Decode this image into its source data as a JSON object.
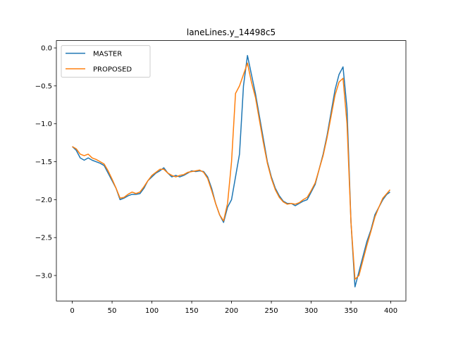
{
  "chart_data": {
    "type": "line",
    "title": "laneLines.y_14498c5",
    "x": [
      0,
      5,
      10,
      15,
      20,
      25,
      30,
      35,
      40,
      45,
      50,
      55,
      60,
      65,
      70,
      75,
      80,
      85,
      90,
      95,
      100,
      105,
      110,
      115,
      120,
      125,
      130,
      135,
      140,
      145,
      150,
      155,
      160,
      165,
      170,
      175,
      180,
      185,
      190,
      195,
      200,
      205,
      210,
      215,
      220,
      225,
      230,
      235,
      240,
      245,
      250,
      255,
      260,
      265,
      270,
      275,
      280,
      285,
      290,
      295,
      300,
      305,
      310,
      315,
      320,
      325,
      330,
      335,
      340,
      345,
      350,
      355,
      360,
      365,
      370,
      375,
      380,
      385,
      390,
      395,
      399
    ],
    "series": [
      {
        "name": "MASTER",
        "color": "#1f77b4",
        "values": [
          -1.3,
          -1.35,
          -1.45,
          -1.48,
          -1.45,
          -1.48,
          -1.5,
          -1.52,
          -1.55,
          -1.65,
          -1.75,
          -1.85,
          -2.0,
          -1.98,
          -1.95,
          -1.93,
          -1.93,
          -1.92,
          -1.85,
          -1.75,
          -1.7,
          -1.65,
          -1.62,
          -1.58,
          -1.65,
          -1.7,
          -1.68,
          -1.7,
          -1.68,
          -1.65,
          -1.62,
          -1.63,
          -1.62,
          -1.63,
          -1.7,
          -1.85,
          -2.05,
          -2.2,
          -2.3,
          -2.1,
          -2.0,
          -1.7,
          -1.4,
          -0.5,
          -0.1,
          -0.35,
          -0.6,
          -0.9,
          -1.2,
          -1.5,
          -1.7,
          -1.85,
          -1.95,
          -2.02,
          -2.05,
          -2.05,
          -2.08,
          -2.05,
          -2.02,
          -2.0,
          -1.9,
          -1.8,
          -1.6,
          -1.4,
          -1.15,
          -0.85,
          -0.55,
          -0.35,
          -0.25,
          -0.8,
          -2.3,
          -3.15,
          -2.95,
          -2.75,
          -2.55,
          -2.4,
          -2.2,
          -2.1,
          -2.0,
          -1.93,
          -1.9
        ]
      },
      {
        "name": "PROPOSED",
        "color": "#ff7f0e",
        "values": [
          -1.3,
          -1.33,
          -1.4,
          -1.42,
          -1.4,
          -1.45,
          -1.47,
          -1.5,
          -1.53,
          -1.62,
          -1.73,
          -1.85,
          -1.98,
          -1.97,
          -1.93,
          -1.9,
          -1.92,
          -1.9,
          -1.83,
          -1.75,
          -1.68,
          -1.64,
          -1.6,
          -1.6,
          -1.65,
          -1.68,
          -1.7,
          -1.68,
          -1.67,
          -1.64,
          -1.63,
          -1.62,
          -1.61,
          -1.64,
          -1.72,
          -1.88,
          -2.05,
          -2.2,
          -2.28,
          -2.05,
          -1.5,
          -0.6,
          -0.5,
          -0.35,
          -0.2,
          -0.45,
          -0.65,
          -0.95,
          -1.25,
          -1.52,
          -1.72,
          -1.87,
          -1.97,
          -2.03,
          -2.06,
          -2.05,
          -2.06,
          -2.04,
          -2.0,
          -1.97,
          -1.88,
          -1.78,
          -1.6,
          -1.42,
          -1.18,
          -0.9,
          -0.62,
          -0.45,
          -0.4,
          -1.0,
          -2.3,
          -3.05,
          -3.0,
          -2.8,
          -2.6,
          -2.42,
          -2.23,
          -2.1,
          -1.98,
          -1.92,
          -1.87
        ]
      }
    ],
    "xlim": [
      -19.95,
      418.95
    ],
    "ylim": [
      -3.336,
      0.097
    ],
    "xticks": [
      0,
      50,
      100,
      150,
      200,
      250,
      300,
      350,
      400
    ],
    "yticks": [
      {
        "value": 0,
        "label": "0.0"
      },
      {
        "value": -0.5,
        "label": "−0.5"
      },
      {
        "value": -1.0,
        "label": "−1.0"
      },
      {
        "value": -1.5,
        "label": "−1.5"
      },
      {
        "value": -2.0,
        "label": "−2.0"
      },
      {
        "value": -2.5,
        "label": "−2.5"
      },
      {
        "value": -3.0,
        "label": "−3.0"
      }
    ],
    "legend": "upper left"
  }
}
